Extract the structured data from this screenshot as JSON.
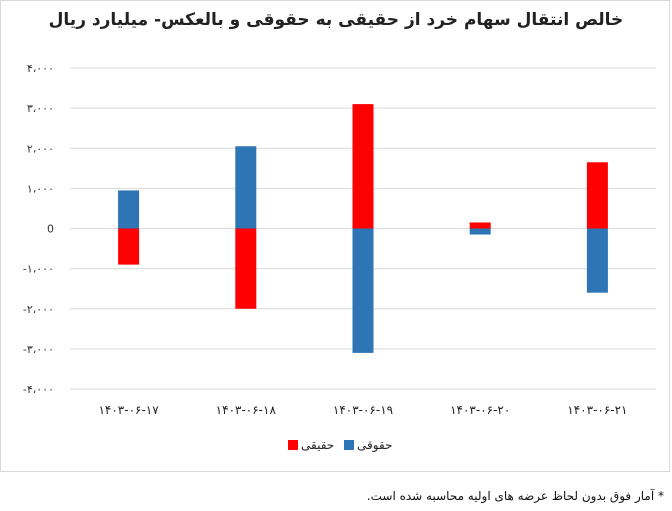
{
  "chart_data": {
    "type": "bar",
    "title": "خالص انتقال سهام خرد از حقیقی به حقوقی و بالعکس- میلیارد ریال",
    "categories": [
      "۱۴۰۳-۰۶-۱۷",
      "۱۴۰۳-۰۶-۱۸",
      "۱۴۰۳-۰۶-۱۹",
      "۱۴۰۳-۰۶-۲۰",
      "۱۴۰۳-۰۶-۲۱"
    ],
    "series": [
      {
        "name": "حقیقی",
        "color": "#ff0000",
        "values": [
          -900,
          -2000,
          3100,
          150,
          1650
        ]
      },
      {
        "name": "حقوقی",
        "color": "#2e75b6",
        "values": [
          950,
          2050,
          -3100,
          -150,
          -1600
        ]
      }
    ],
    "ylim": [
      -4000,
      4000
    ],
    "yticks": [
      4000,
      3000,
      2000,
      1000,
      0,
      -1000,
      -2000,
      -3000,
      -4000
    ],
    "ytick_labels": [
      "۴،۰۰۰",
      "۳،۰۰۰",
      "۲،۰۰۰",
      "۱،۰۰۰",
      "0",
      "-۱،۰۰۰",
      "-۲،۰۰۰",
      "-۳،۰۰۰",
      "-۴،۰۰۰"
    ],
    "stacked": true,
    "grid": true,
    "legend_position": "bottom",
    "xlabel": "",
    "ylabel": ""
  },
  "footnote": "* آمار فوق بدون لحاظ عرضه های اولیه محاسبه شده است."
}
